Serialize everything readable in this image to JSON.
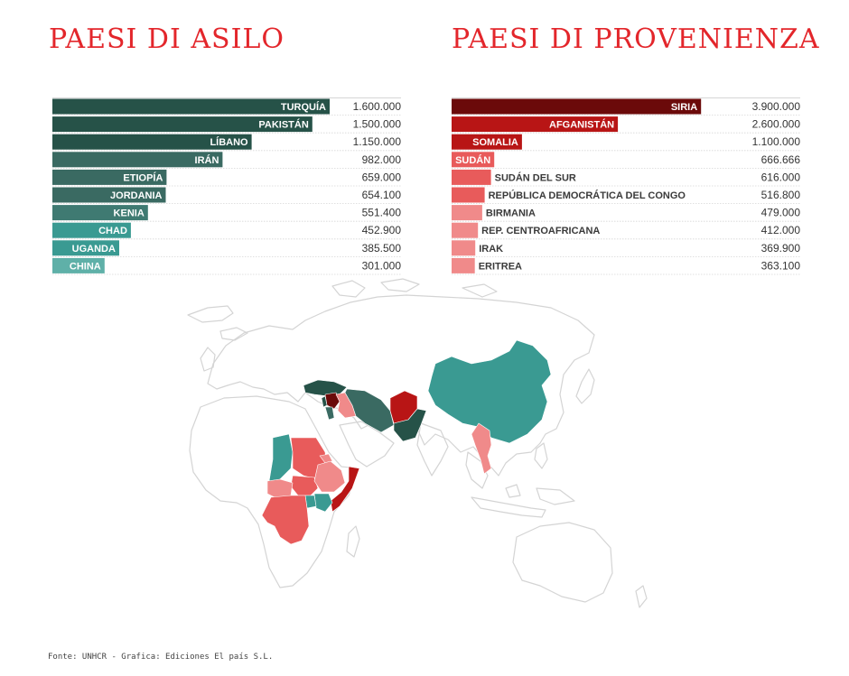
{
  "titles": {
    "left": "PAESI DI ASILO",
    "right": "PAESI DI PROVENIENZA"
  },
  "chart_data": [
    {
      "type": "bar",
      "orientation": "horizontal",
      "title": "PAESI DI ASILO",
      "categories": [
        "TURQUÍA",
        "PAKISTÁN",
        "LÍBANO",
        "IRÁN",
        "ETIOPÍA",
        "JORDANIA",
        "KENIA",
        "CHAD",
        "UGANDA",
        "CHINA"
      ],
      "values": [
        1600000,
        1500000,
        1150000,
        982000,
        659000,
        654100,
        551400,
        452900,
        385500,
        301000
      ],
      "value_labels": [
        "1.600.000",
        "1.500.000",
        "1.150.000",
        "982.000",
        "659.000",
        "654.100",
        "551.400",
        "452.900",
        "385.500",
        "301.000"
      ],
      "colors": [
        "#265248",
        "#265248",
        "#265248",
        "#3a6a62",
        "#3a6a62",
        "#3a6a62",
        "#3f7a72",
        "#3a9a92",
        "#3a9a92",
        "#5fb0a8"
      ],
      "xlim": [
        0,
        1720000
      ]
    },
    {
      "type": "bar",
      "orientation": "horizontal",
      "title": "PAESI DI PROVENIENZA",
      "categories": [
        "SIRIA",
        "AFGANISTÁN",
        "SOMALIA",
        "SUDÁN",
        "SUDÁN DEL SUR",
        "REPÚBLICA DEMOCRÁTICA DEL CONGO",
        "BIRMANIA",
        "REP. CENTROAFRICANA",
        "IRAK",
        "ERITREA"
      ],
      "values": [
        3900000,
        2600000,
        1100000,
        666666,
        616000,
        516800,
        479000,
        412000,
        369900,
        363100
      ],
      "value_labels": [
        "3.900.000",
        "2.600.000",
        "1.100.000",
        "666.666",
        "616.000",
        "516.800",
        "479.000",
        "412.000",
        "369.900",
        "363.100"
      ],
      "colors": [
        "#6b0a0a",
        "#b81515",
        "#b81515",
        "#e85b5b",
        "#e85b5b",
        "#e85b5b",
        "#f08a8a",
        "#f08a8a",
        "#f08a8a",
        "#f08a8a"
      ],
      "xlim": [
        0,
        4660000
      ]
    }
  ],
  "map": {
    "colors": {
      "dark_teal": "#265248",
      "mid_teal": "#3a6a62",
      "teal": "#3a9a92",
      "dark_red": "#6b0a0a",
      "red": "#b81515",
      "coral": "#e85b5b",
      "pink": "#f08a8a",
      "outline": "#d4d4d4"
    }
  },
  "source": "Fonte: UNHCR - Grafica: Ediciones El país S.L."
}
